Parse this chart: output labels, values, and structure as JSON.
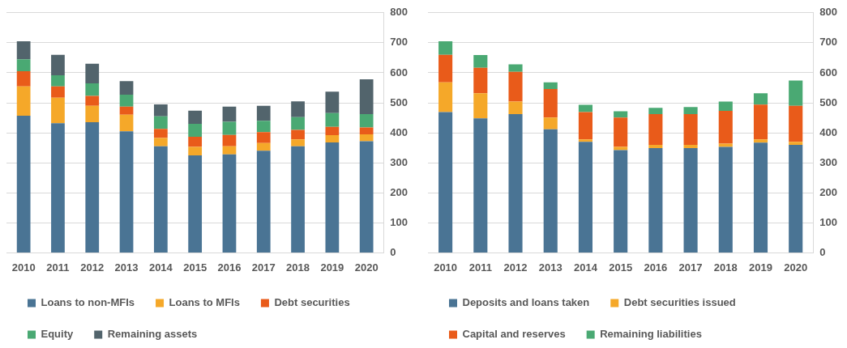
{
  "chart_data": [
    {
      "type": "bar",
      "stacked": true,
      "categories": [
        "2010",
        "2011",
        "2012",
        "2013",
        "2014",
        "2015",
        "2016",
        "2017",
        "2018",
        "2019",
        "2020"
      ],
      "series": [
        {
          "name": "Loans to non-MFIs",
          "color": "#4a7494",
          "values": [
            457,
            432,
            435,
            405,
            355,
            325,
            328,
            340,
            355,
            368,
            372
          ]
        },
        {
          "name": "Loans to MFIs",
          "color": "#f5a829",
          "values": [
            98,
            85,
            55,
            55,
            28,
            28,
            27,
            26,
            23,
            24,
            23
          ]
        },
        {
          "name": "Debt securities",
          "color": "#e95b1a",
          "values": [
            50,
            38,
            33,
            27,
            30,
            34,
            38,
            36,
            32,
            28,
            23
          ]
        },
        {
          "name": "Equity",
          "color": "#4aa973",
          "values": [
            40,
            37,
            42,
            40,
            42,
            43,
            44,
            38,
            42,
            46,
            44
          ]
        },
        {
          "name": "Remaining assets",
          "color": "#52646c",
          "values": [
            60,
            68,
            65,
            45,
            40,
            44,
            50,
            50,
            53,
            71,
            116
          ]
        }
      ],
      "ylim": [
        0,
        800
      ],
      "yticks": [
        0,
        100,
        200,
        300,
        400,
        500,
        600,
        700,
        800
      ],
      "grid": "y",
      "legend": "bottom"
    },
    {
      "type": "bar",
      "stacked": true,
      "categories": [
        "2010",
        "2011",
        "2012",
        "2013",
        "2014",
        "2015",
        "2016",
        "2017",
        "2018",
        "2019",
        "2020"
      ],
      "series": [
        {
          "name": "Deposits and loans taken",
          "color": "#4a7494",
          "values": [
            469,
            448,
            462,
            412,
            370,
            342,
            349,
            349,
            353,
            367,
            360
          ]
        },
        {
          "name": "Debt securities issued",
          "color": "#f5a829",
          "values": [
            99,
            84,
            42,
            39,
            8,
            11,
            11,
            11,
            11,
            11,
            10
          ]
        },
        {
          "name": "Capital and reserves",
          "color": "#e95b1a",
          "values": [
            92,
            85,
            99,
            95,
            91,
            98,
            102,
            102,
            109,
            116,
            120
          ]
        },
        {
          "name": "Remaining liabilities",
          "color": "#4aa973",
          "values": [
            45,
            42,
            25,
            22,
            24,
            21,
            21,
            24,
            31,
            38,
            84
          ]
        }
      ],
      "ylim": [
        0,
        800
      ],
      "yticks": [
        0,
        100,
        200,
        300,
        400,
        500,
        600,
        700,
        800
      ],
      "grid": "y",
      "legend": "bottom"
    }
  ]
}
